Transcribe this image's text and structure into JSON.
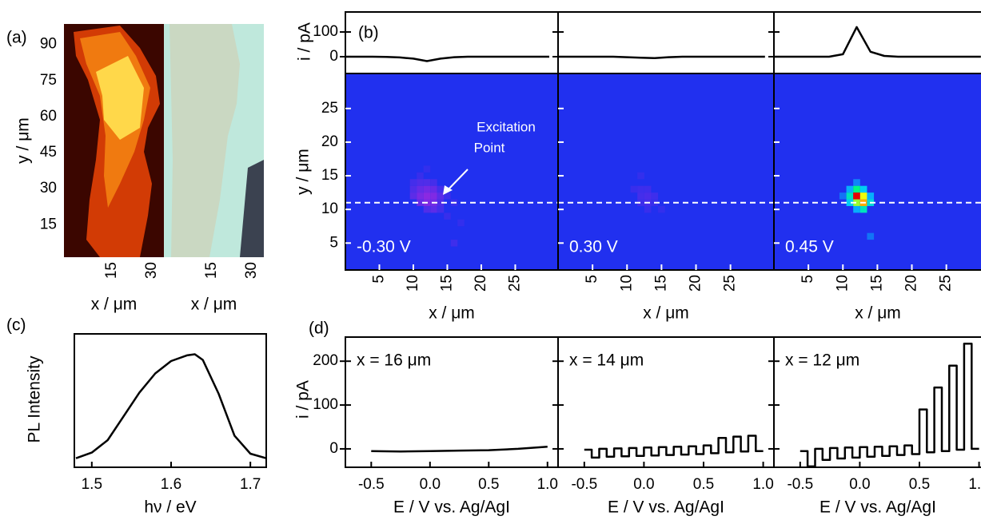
{
  "chart_data": [
    {
      "type": "image",
      "panel": "(a)",
      "ylabel": "y / μm",
      "xlabel": "x / μm",
      "xlim": [
        -3,
        34.5
      ],
      "xticks": [
        15,
        30
      ],
      "ylim": [
        1.5,
        98.5
      ],
      "yticks": [
        15,
        30,
        45,
        60,
        75,
        90
      ]
    },
    {
      "type": "image",
      "xlabel": "x / μm",
      "xlim": [
        -3,
        34.5
      ],
      "xticks": [
        15,
        30
      ]
    },
    {
      "type": "line",
      "panel": "(b)",
      "ylabel": "i / pA",
      "color": "#000000",
      "x": [
        0,
        2,
        4,
        6,
        8,
        10,
        12,
        14,
        16,
        18,
        20,
        22,
        24,
        26,
        28,
        30
      ],
      "values": [
        0,
        0,
        0,
        -1,
        -3,
        -8,
        -18,
        -8,
        -2,
        0,
        0,
        0,
        0,
        0,
        0,
        0
      ],
      "xlim": [
        0,
        31.3
      ],
      "ylim": [
        -68,
        181
      ],
      "yticks": [
        0,
        100
      ]
    },
    {
      "type": "line",
      "color": "#000000",
      "ytick_labels": false,
      "x": [
        0,
        2,
        4,
        6,
        8,
        10,
        12,
        14,
        16,
        18,
        20,
        22,
        24,
        26,
        28,
        30
      ],
      "values": [
        0,
        0,
        0,
        0,
        0,
        -2,
        -4,
        -6,
        -2,
        0,
        0,
        0,
        0,
        0,
        0,
        0
      ],
      "xlim": [
        0,
        31.3
      ],
      "ylim": [
        -68,
        181
      ],
      "yticks": [
        0,
        100
      ]
    },
    {
      "type": "line",
      "color": "#000000",
      "ytick_labels": false,
      "x": [
        0,
        2,
        4,
        6,
        8,
        10,
        12,
        14,
        16,
        18,
        20,
        22,
        24,
        26,
        28,
        30
      ],
      "values": [
        0,
        0,
        0,
        0,
        0,
        10,
        120,
        20,
        3,
        0,
        0,
        0,
        0,
        0,
        0,
        0
      ],
      "xlim": [
        0,
        31.3
      ],
      "ylim": [
        -68,
        181
      ],
      "yticks": [
        0,
        100
      ]
    },
    {
      "type": "heatmap",
      "ylabel": "y / μm",
      "xlabel": "x / μm",
      "label": "-0.30 V",
      "annotation": [
        "Excitation",
        "Point"
      ],
      "background": "#2130ef",
      "reference_y": 11,
      "xlim": [
        0,
        31.3
      ],
      "ylim": [
        1,
        30.2
      ],
      "xticks": [
        5,
        10,
        15,
        20,
        25
      ],
      "yticks": [
        5,
        10,
        15,
        20,
        25
      ],
      "x": [
        11,
        12,
        10,
        11,
        12,
        13,
        10,
        11,
        12,
        13,
        14,
        10,
        11,
        12,
        13,
        14,
        15,
        11,
        12,
        13,
        14,
        16,
        12,
        13,
        14,
        15,
        17,
        16
      ],
      "y": [
        15,
        16,
        14,
        14,
        14,
        14,
        13,
        13,
        13,
        13,
        13,
        12,
        12,
        12,
        12,
        12,
        12,
        11,
        11,
        11,
        11,
        11,
        10,
        10,
        10,
        9,
        8,
        5
      ],
      "values": [
        -4,
        -3,
        -6,
        -8,
        -8,
        -6,
        -8,
        -12,
        -14,
        -12,
        -6,
        -10,
        -15,
        -18,
        -16,
        -10,
        -5,
        -12,
        -16,
        -14,
        -8,
        -4,
        -8,
        -10,
        -6,
        -4,
        -3,
        -5
      ]
    },
    {
      "type": "heatmap",
      "xlabel": "x / μm",
      "label": "0.30 V",
      "ytick_labels": false,
      "background": "#2130ef",
      "reference_y": 11,
      "xlim": [
        0,
        31.3
      ],
      "ylim": [
        1,
        30.2
      ],
      "xticks": [
        5,
        10,
        15,
        20,
        25
      ],
      "yticks": [
        5,
        10,
        15,
        20,
        25
      ],
      "x": [
        12,
        11,
        12,
        13,
        12,
        13,
        14,
        12,
        13,
        14,
        15,
        13
      ],
      "y": [
        15,
        13,
        13,
        13,
        12,
        12,
        12,
        11,
        11,
        11,
        10,
        10
      ],
      "values": [
        -3,
        -4,
        -5,
        -5,
        -6,
        -7,
        -5,
        -5,
        -6,
        -4,
        -3,
        -4
      ]
    },
    {
      "type": "heatmap",
      "xlabel": "x / μm",
      "label": "0.45 V",
      "ytick_labels": false,
      "background": "#2130ef",
      "reference_y": 11,
      "xlim": [
        0,
        31.3
      ],
      "ylim": [
        1,
        30.2
      ],
      "xticks": [
        5,
        10,
        15,
        20,
        25
      ],
      "yticks": [
        5,
        10,
        15,
        20,
        25
      ],
      "x": [
        12,
        11,
        12,
        13,
        11,
        12,
        13,
        14,
        11,
        12,
        13,
        14,
        12,
        13,
        14,
        10
      ],
      "y": [
        14,
        13,
        13,
        13,
        12,
        12,
        12,
        12,
        11,
        11,
        11,
        11,
        10,
        10,
        6,
        12
      ],
      "values": [
        10,
        15,
        40,
        20,
        30,
        120,
        70,
        15,
        20,
        60,
        90,
        25,
        15,
        30,
        8,
        8
      ]
    },
    {
      "type": "line",
      "panel": "(c)",
      "ylabel": "PL Intensity",
      "xlabel": "hν / eV",
      "color": "#000000",
      "x": [
        1.48,
        1.5,
        1.52,
        1.54,
        1.56,
        1.58,
        1.6,
        1.62,
        1.63,
        1.64,
        1.66,
        1.68,
        1.7,
        1.72
      ],
      "values": [
        0.08,
        0.13,
        0.24,
        0.45,
        0.66,
        0.83,
        0.94,
        0.99,
        1.0,
        0.95,
        0.65,
        0.28,
        0.12,
        0.08
      ],
      "xlim": [
        1.478,
        1.72
      ],
      "ylim": [
        0,
        1.18
      ],
      "xticks": [
        1.5,
        1.6,
        1.7
      ]
    },
    {
      "type": "line",
      "panel": "(d)",
      "ylabel": "i / pA",
      "xlabel": "E / V vs. Ag/AgI",
      "label": "x = 16 μm",
      "color": "#000000",
      "x": [
        -0.5,
        -0.25,
        0,
        0.25,
        0.5,
        0.75,
        1.0
      ],
      "values": [
        -5,
        -6,
        -5,
        -4,
        -3,
        0,
        5
      ],
      "xlim": [
        -0.72,
        1.09
      ],
      "ylim": [
        -42,
        255
      ],
      "xticks": [
        -0.5,
        {
          "value": 0,
          "label": "0.0"
        },
        0.5,
        {
          "value": 1,
          "label": "1.0"
        }
      ],
      "yticks": [
        0,
        100,
        200
      ]
    },
    {
      "type": "line",
      "xlabel": "E / V vs. Ag/AgI",
      "label": "x = 14 μm",
      "color": "#000000",
      "ytick_labels": false,
      "x": [
        -0.5,
        -0.4375,
        -0.4375,
        -0.375,
        -0.375,
        -0.3125,
        -0.3125,
        -0.25,
        -0.25,
        -0.1875,
        -0.1875,
        -0.125,
        -0.125,
        -0.0625,
        -0.0625,
        0,
        0,
        0.0625,
        0.0625,
        0.125,
        0.125,
        0.1875,
        0.1875,
        0.25,
        0.25,
        0.3125,
        0.3125,
        0.375,
        0.375,
        0.4375,
        0.4375,
        0.5,
        0.5,
        0.5625,
        0.5625,
        0.625,
        0.625,
        0.6875,
        0.6875,
        0.75,
        0.75,
        0.8125,
        0.8125,
        0.875,
        0.875,
        0.9375,
        0.9375,
        1.0
      ],
      "values": [
        -2,
        -2,
        -20,
        -20,
        0,
        0,
        -18,
        -18,
        1,
        1,
        -17,
        -17,
        2,
        2,
        -16,
        -16,
        3,
        3,
        -15,
        -15,
        4,
        4,
        -14,
        -14,
        5,
        5,
        -13,
        -13,
        6,
        6,
        -12,
        -12,
        8,
        8,
        -10,
        -10,
        25,
        25,
        -8,
        -8,
        28,
        28,
        -6,
        -6,
        30,
        30,
        -5,
        -5
      ],
      "xlim": [
        -0.72,
        1.09
      ],
      "ylim": [
        -42,
        255
      ],
      "xticks": [
        -0.5,
        {
          "value": 0,
          "label": "0.0"
        },
        0.5,
        {
          "value": 1,
          "label": "1.0"
        }
      ],
      "yticks": [
        0,
        100,
        200
      ]
    },
    {
      "type": "line",
      "xlabel": "E / V vs. Ag/AgI",
      "label": "x = 12 μm",
      "color": "#000000",
      "ytick_labels": false,
      "x": [
        -0.5,
        -0.4375,
        -0.4375,
        -0.375,
        -0.375,
        -0.3125,
        -0.3125,
        -0.25,
        -0.25,
        -0.1875,
        -0.1875,
        -0.125,
        -0.125,
        -0.0625,
        -0.0625,
        0,
        0,
        0.0625,
        0.0625,
        0.125,
        0.125,
        0.1875,
        0.1875,
        0.25,
        0.25,
        0.3125,
        0.3125,
        0.375,
        0.375,
        0.4375,
        0.4375,
        0.5,
        0.5,
        0.5625,
        0.5625,
        0.625,
        0.625,
        0.6875,
        0.6875,
        0.75,
        0.75,
        0.8125,
        0.8125,
        0.875,
        0.875,
        0.9375,
        0.9375,
        1.0
      ],
      "values": [
        -5,
        -5,
        -40,
        -40,
        0,
        0,
        -25,
        -25,
        2,
        2,
        -22,
        -22,
        3,
        3,
        -20,
        -20,
        4,
        4,
        -18,
        -18,
        5,
        5,
        -16,
        -16,
        6,
        6,
        -14,
        -14,
        8,
        8,
        -12,
        -12,
        90,
        90,
        -8,
        -8,
        140,
        140,
        -5,
        -5,
        190,
        190,
        -2,
        -2,
        240,
        240,
        0,
        0
      ],
      "xlim": [
        -0.72,
        1.09
      ],
      "ylim": [
        -42,
        255
      ],
      "xticks": [
        -0.5,
        {
          "value": 0,
          "label": "0.0"
        },
        0.5,
        {
          "value": 1,
          "label": "1.0"
        }
      ],
      "yticks": [
        0,
        100,
        200
      ]
    }
  ]
}
